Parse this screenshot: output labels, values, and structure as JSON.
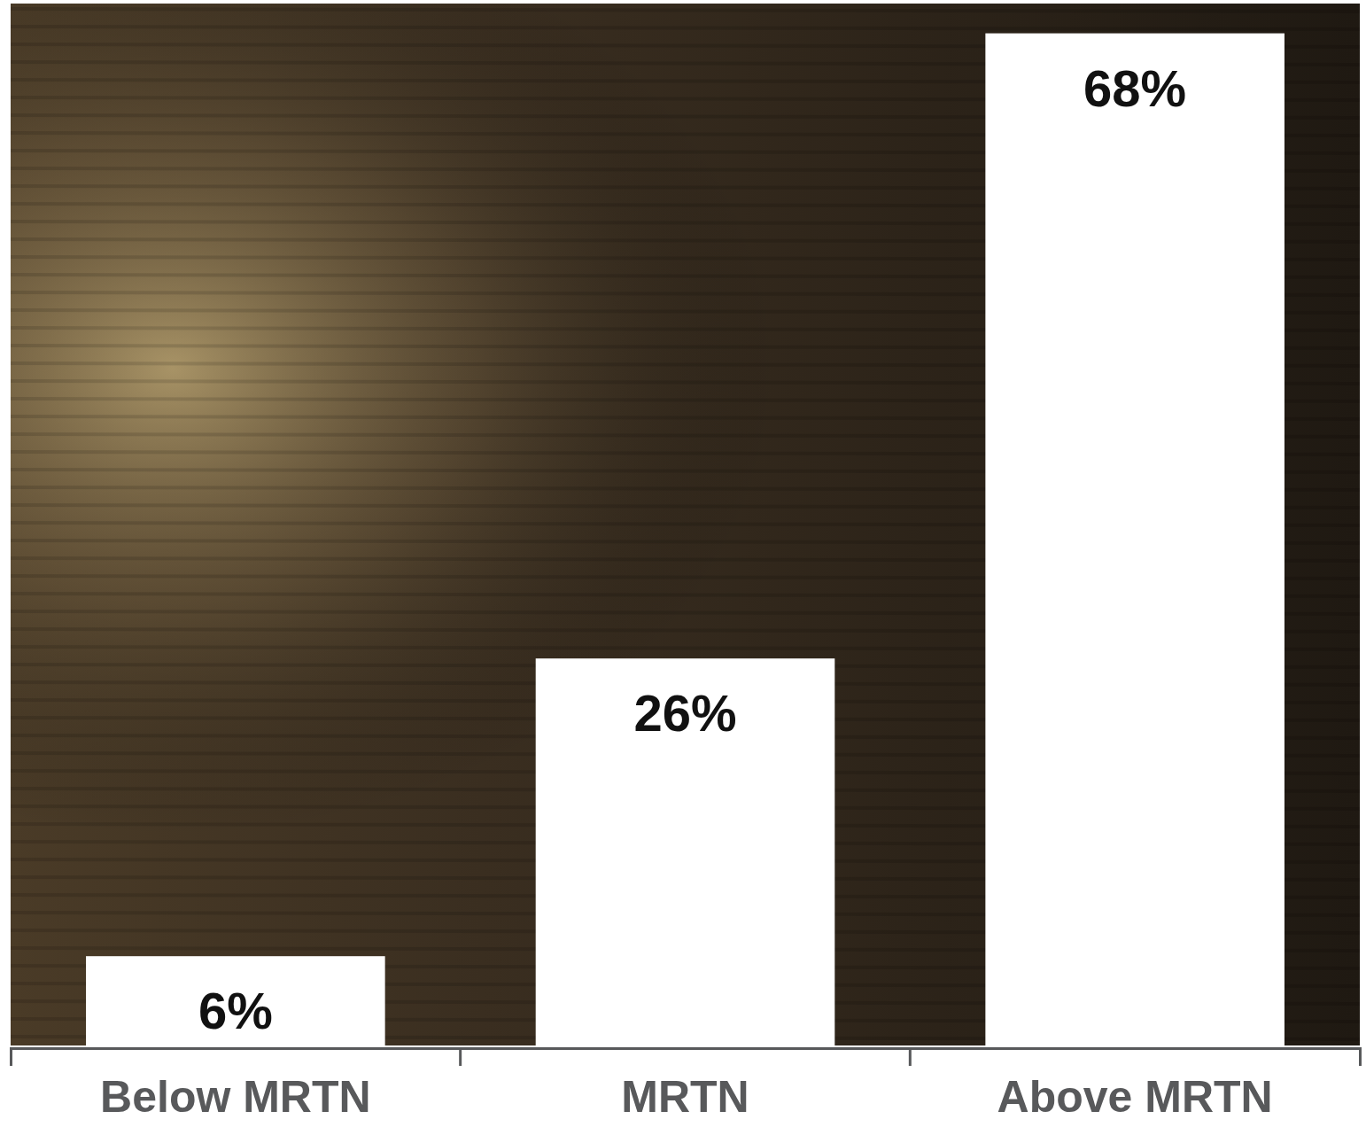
{
  "chart_data": {
    "type": "bar",
    "categories": [
      "Below MRTN",
      "MRTN",
      "Above MRTN"
    ],
    "values": [
      6,
      26,
      68
    ],
    "value_labels": [
      "6%",
      "26%",
      "68%"
    ],
    "color": "#ffffff",
    "ylim": [
      0,
      70
    ],
    "data_labels": true,
    "tick_labels": "x",
    "grid": false
  }
}
